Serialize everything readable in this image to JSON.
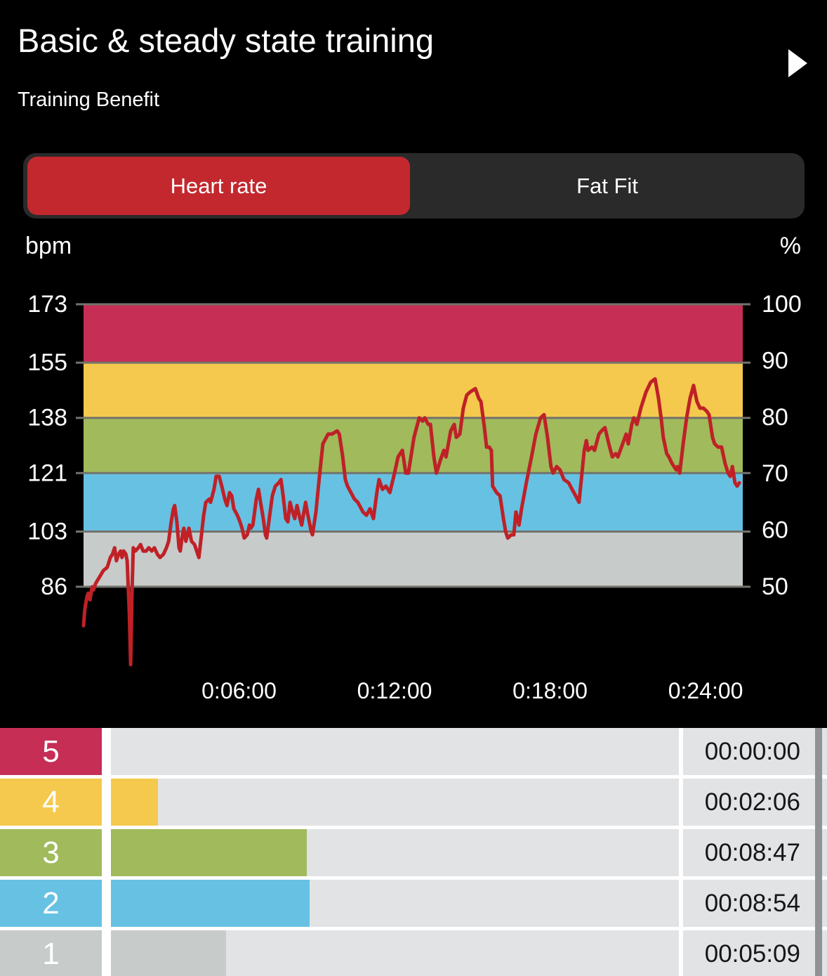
{
  "header": {
    "title": "Basic & steady state training",
    "subtitle": "Training Benefit"
  },
  "tabs": {
    "active_color": "#c3282e",
    "bar_bg": "#2a2a2a",
    "items": [
      {
        "label": "Heart rate",
        "active": true
      },
      {
        "label": "Fat Fit",
        "active": false
      }
    ]
  },
  "chart_data": {
    "type": "line",
    "title": "",
    "ylabel": "bpm",
    "y2label": "%",
    "left_axis": {
      "unit": "bpm",
      "ticks": [
        173,
        155,
        138,
        121,
        103,
        86
      ]
    },
    "right_axis": {
      "unit": "%",
      "ticks": [
        100,
        90,
        80,
        70,
        60,
        50
      ]
    },
    "bpm_range": [
      86,
      173
    ],
    "percent_range": [
      50,
      100
    ],
    "x_axis": {
      "max_seconds": 1526,
      "ticks": [
        {
          "label": "0:06:00",
          "seconds": 360
        },
        {
          "label": "0:12:00",
          "seconds": 720
        },
        {
          "label": "0:18:00",
          "seconds": 1080
        },
        {
          "label": "0:24:00",
          "seconds": 1440
        }
      ]
    },
    "gridline_color": "#73736c",
    "line_color": "#bf2127",
    "zones": [
      {
        "zone": 5,
        "bpm_min": 155,
        "bpm_max": 173,
        "color": "#c62e56"
      },
      {
        "zone": 4,
        "bpm_min": 138,
        "bpm_max": 155,
        "color": "#f4c94d"
      },
      {
        "zone": 3,
        "bpm_min": 121,
        "bpm_max": 138,
        "color": "#a0ba5c"
      },
      {
        "zone": 2,
        "bpm_min": 103,
        "bpm_max": 121,
        "color": "#67c1e3"
      },
      {
        "zone": 1,
        "bpm_min": 86,
        "bpm_max": 103,
        "color": "#c7cbca"
      }
    ],
    "series": [
      {
        "name": "Heart rate",
        "points": [
          [
            0,
            74
          ],
          [
            3,
            79
          ],
          [
            8,
            83
          ],
          [
            11,
            84
          ],
          [
            15,
            82
          ],
          [
            20,
            86
          ],
          [
            23,
            85
          ],
          [
            28,
            87
          ],
          [
            37,
            89
          ],
          [
            46,
            91
          ],
          [
            55,
            92
          ],
          [
            62,
            95
          ],
          [
            67,
            96
          ],
          [
            72,
            98
          ],
          [
            76,
            94
          ],
          [
            81,
            96
          ],
          [
            86,
            97
          ],
          [
            89,
            95
          ],
          [
            93,
            97
          ],
          [
            98,
            96
          ],
          [
            101,
            94
          ],
          [
            106,
            78
          ],
          [
            109,
            62
          ],
          [
            112,
            83
          ],
          [
            115,
            98
          ],
          [
            120,
            97
          ],
          [
            127,
            98
          ],
          [
            132,
            99
          ],
          [
            138,
            97
          ],
          [
            145,
            97
          ],
          [
            151,
            98
          ],
          [
            158,
            97
          ],
          [
            164,
            98
          ],
          [
            171,
            96
          ],
          [
            177,
            95
          ],
          [
            185,
            96
          ],
          [
            192,
            98
          ],
          [
            197,
            100
          ],
          [
            203,
            106
          ],
          [
            208,
            110
          ],
          [
            211,
            111
          ],
          [
            216,
            106
          ],
          [
            221,
            98
          ],
          [
            224,
            97
          ],
          [
            229,
            102
          ],
          [
            232,
            104
          ],
          [
            237,
            100
          ],
          [
            244,
            104
          ],
          [
            250,
            100
          ],
          [
            257,
            99
          ],
          [
            262,
            97
          ],
          [
            267,
            95
          ],
          [
            273,
            102
          ],
          [
            278,
            108
          ],
          [
            283,
            112
          ],
          [
            291,
            113
          ],
          [
            294,
            112
          ],
          [
            302,
            116
          ],
          [
            307,
            120
          ],
          [
            314,
            120
          ],
          [
            320,
            117
          ],
          [
            327,
            113
          ],
          [
            332,
            111
          ],
          [
            338,
            115
          ],
          [
            343,
            114
          ],
          [
            348,
            110
          ],
          [
            356,
            108
          ],
          [
            362,
            106
          ],
          [
            367,
            104
          ],
          [
            372,
            101
          ],
          [
            379,
            102
          ],
          [
            384,
            105
          ],
          [
            387,
            104
          ],
          [
            392,
            105
          ],
          [
            400,
            113
          ],
          [
            405,
            116
          ],
          [
            411,
            111
          ],
          [
            416,
            107
          ],
          [
            421,
            102
          ],
          [
            424,
            101
          ],
          [
            432,
            109
          ],
          [
            437,
            114
          ],
          [
            444,
            117
          ],
          [
            452,
            118
          ],
          [
            457,
            119
          ],
          [
            462,
            114
          ],
          [
            468,
            107
          ],
          [
            473,
            106
          ],
          [
            478,
            112
          ],
          [
            484,
            109
          ],
          [
            489,
            107
          ],
          [
            494,
            111
          ],
          [
            501,
            107
          ],
          [
            505,
            105
          ],
          [
            514,
            112
          ],
          [
            518,
            109
          ],
          [
            527,
            103
          ],
          [
            530,
            102
          ],
          [
            538,
            109
          ],
          [
            546,
            120
          ],
          [
            554,
            130
          ],
          [
            566,
            133
          ],
          [
            575,
            133
          ],
          [
            587,
            134
          ],
          [
            592,
            133
          ],
          [
            600,
            126
          ],
          [
            606,
            119
          ],
          [
            611,
            117
          ],
          [
            619,
            115
          ],
          [
            627,
            113
          ],
          [
            635,
            112
          ],
          [
            647,
            109
          ],
          [
            655,
            108
          ],
          [
            663,
            110
          ],
          [
            671,
            107
          ],
          [
            679,
            115
          ],
          [
            684,
            119
          ],
          [
            692,
            116
          ],
          [
            700,
            117
          ],
          [
            709,
            115
          ],
          [
            720,
            121
          ],
          [
            728,
            126
          ],
          [
            738,
            128
          ],
          [
            746,
            121
          ],
          [
            752,
            121
          ],
          [
            765,
            132
          ],
          [
            777,
            138
          ],
          [
            785,
            137
          ],
          [
            790,
            138
          ],
          [
            798,
            136
          ],
          [
            803,
            136
          ],
          [
            811,
            126
          ],
          [
            817,
            121
          ],
          [
            826,
            125
          ],
          [
            834,
            128
          ],
          [
            839,
            126
          ],
          [
            850,
            134
          ],
          [
            858,
            136
          ],
          [
            863,
            132
          ],
          [
            871,
            133
          ],
          [
            879,
            141
          ],
          [
            887,
            145
          ],
          [
            895,
            146
          ],
          [
            907,
            147
          ],
          [
            915,
            144
          ],
          [
            920,
            143
          ],
          [
            928,
            135
          ],
          [
            933,
            129
          ],
          [
            939,
            129
          ],
          [
            944,
            128
          ],
          [
            947,
            117
          ],
          [
            956,
            115
          ],
          [
            964,
            114
          ],
          [
            972,
            107
          ],
          [
            977,
            103
          ],
          [
            982,
            101
          ],
          [
            990,
            102
          ],
          [
            996,
            102
          ],
          [
            1001,
            109
          ],
          [
            1008,
            105
          ],
          [
            1014,
            110
          ],
          [
            1025,
            118
          ],
          [
            1037,
            126
          ],
          [
            1047,
            133
          ],
          [
            1058,
            138
          ],
          [
            1066,
            139
          ],
          [
            1074,
            132
          ],
          [
            1082,
            123
          ],
          [
            1087,
            121
          ],
          [
            1095,
            123
          ],
          [
            1103,
            122
          ],
          [
            1112,
            119
          ],
          [
            1123,
            118
          ],
          [
            1131,
            116
          ],
          [
            1139,
            114
          ],
          [
            1147,
            112
          ],
          [
            1159,
            128
          ],
          [
            1164,
            131
          ],
          [
            1168,
            128
          ],
          [
            1177,
            129
          ],
          [
            1183,
            128
          ],
          [
            1193,
            133
          ],
          [
            1199,
            134
          ],
          [
            1207,
            135
          ],
          [
            1216,
            130
          ],
          [
            1224,
            126
          ],
          [
            1232,
            127
          ],
          [
            1237,
            126
          ],
          [
            1248,
            130
          ],
          [
            1256,
            133
          ],
          [
            1261,
            130
          ],
          [
            1269,
            136
          ],
          [
            1274,
            138
          ],
          [
            1281,
            136
          ],
          [
            1290,
            141
          ],
          [
            1302,
            146
          ],
          [
            1313,
            149
          ],
          [
            1323,
            150
          ],
          [
            1331,
            144
          ],
          [
            1337,
            138
          ],
          [
            1342,
            132
          ],
          [
            1350,
            127
          ],
          [
            1355,
            126
          ],
          [
            1362,
            124
          ],
          [
            1372,
            122
          ],
          [
            1375,
            123
          ],
          [
            1380,
            121
          ],
          [
            1388,
            130
          ],
          [
            1396,
            138
          ],
          [
            1404,
            144
          ],
          [
            1412,
            148
          ],
          [
            1420,
            143
          ],
          [
            1427,
            141
          ],
          [
            1435,
            141
          ],
          [
            1443,
            140
          ],
          [
            1448,
            139
          ],
          [
            1456,
            132
          ],
          [
            1461,
            130
          ],
          [
            1469,
            129
          ],
          [
            1477,
            129
          ],
          [
            1485,
            124
          ],
          [
            1492,
            121
          ],
          [
            1497,
            120
          ],
          [
            1502,
            123
          ],
          [
            1508,
            118
          ],
          [
            1513,
            117
          ],
          [
            1518,
            118
          ]
        ]
      }
    ]
  },
  "zone_table": {
    "rows": [
      {
        "zone": "5",
        "color": "#c62e56",
        "duration": "00:00:00",
        "seconds": 0
      },
      {
        "zone": "4",
        "color": "#f4c94d",
        "duration": "00:02:06",
        "seconds": 126
      },
      {
        "zone": "3",
        "color": "#a0ba5c",
        "duration": "00:08:47",
        "seconds": 527
      },
      {
        "zone": "2",
        "color": "#67c1e3",
        "duration": "00:08:54",
        "seconds": 534
      },
      {
        "zone": "1",
        "color": "#c7cbca",
        "duration": "00:05:09",
        "seconds": 309
      }
    ]
  }
}
